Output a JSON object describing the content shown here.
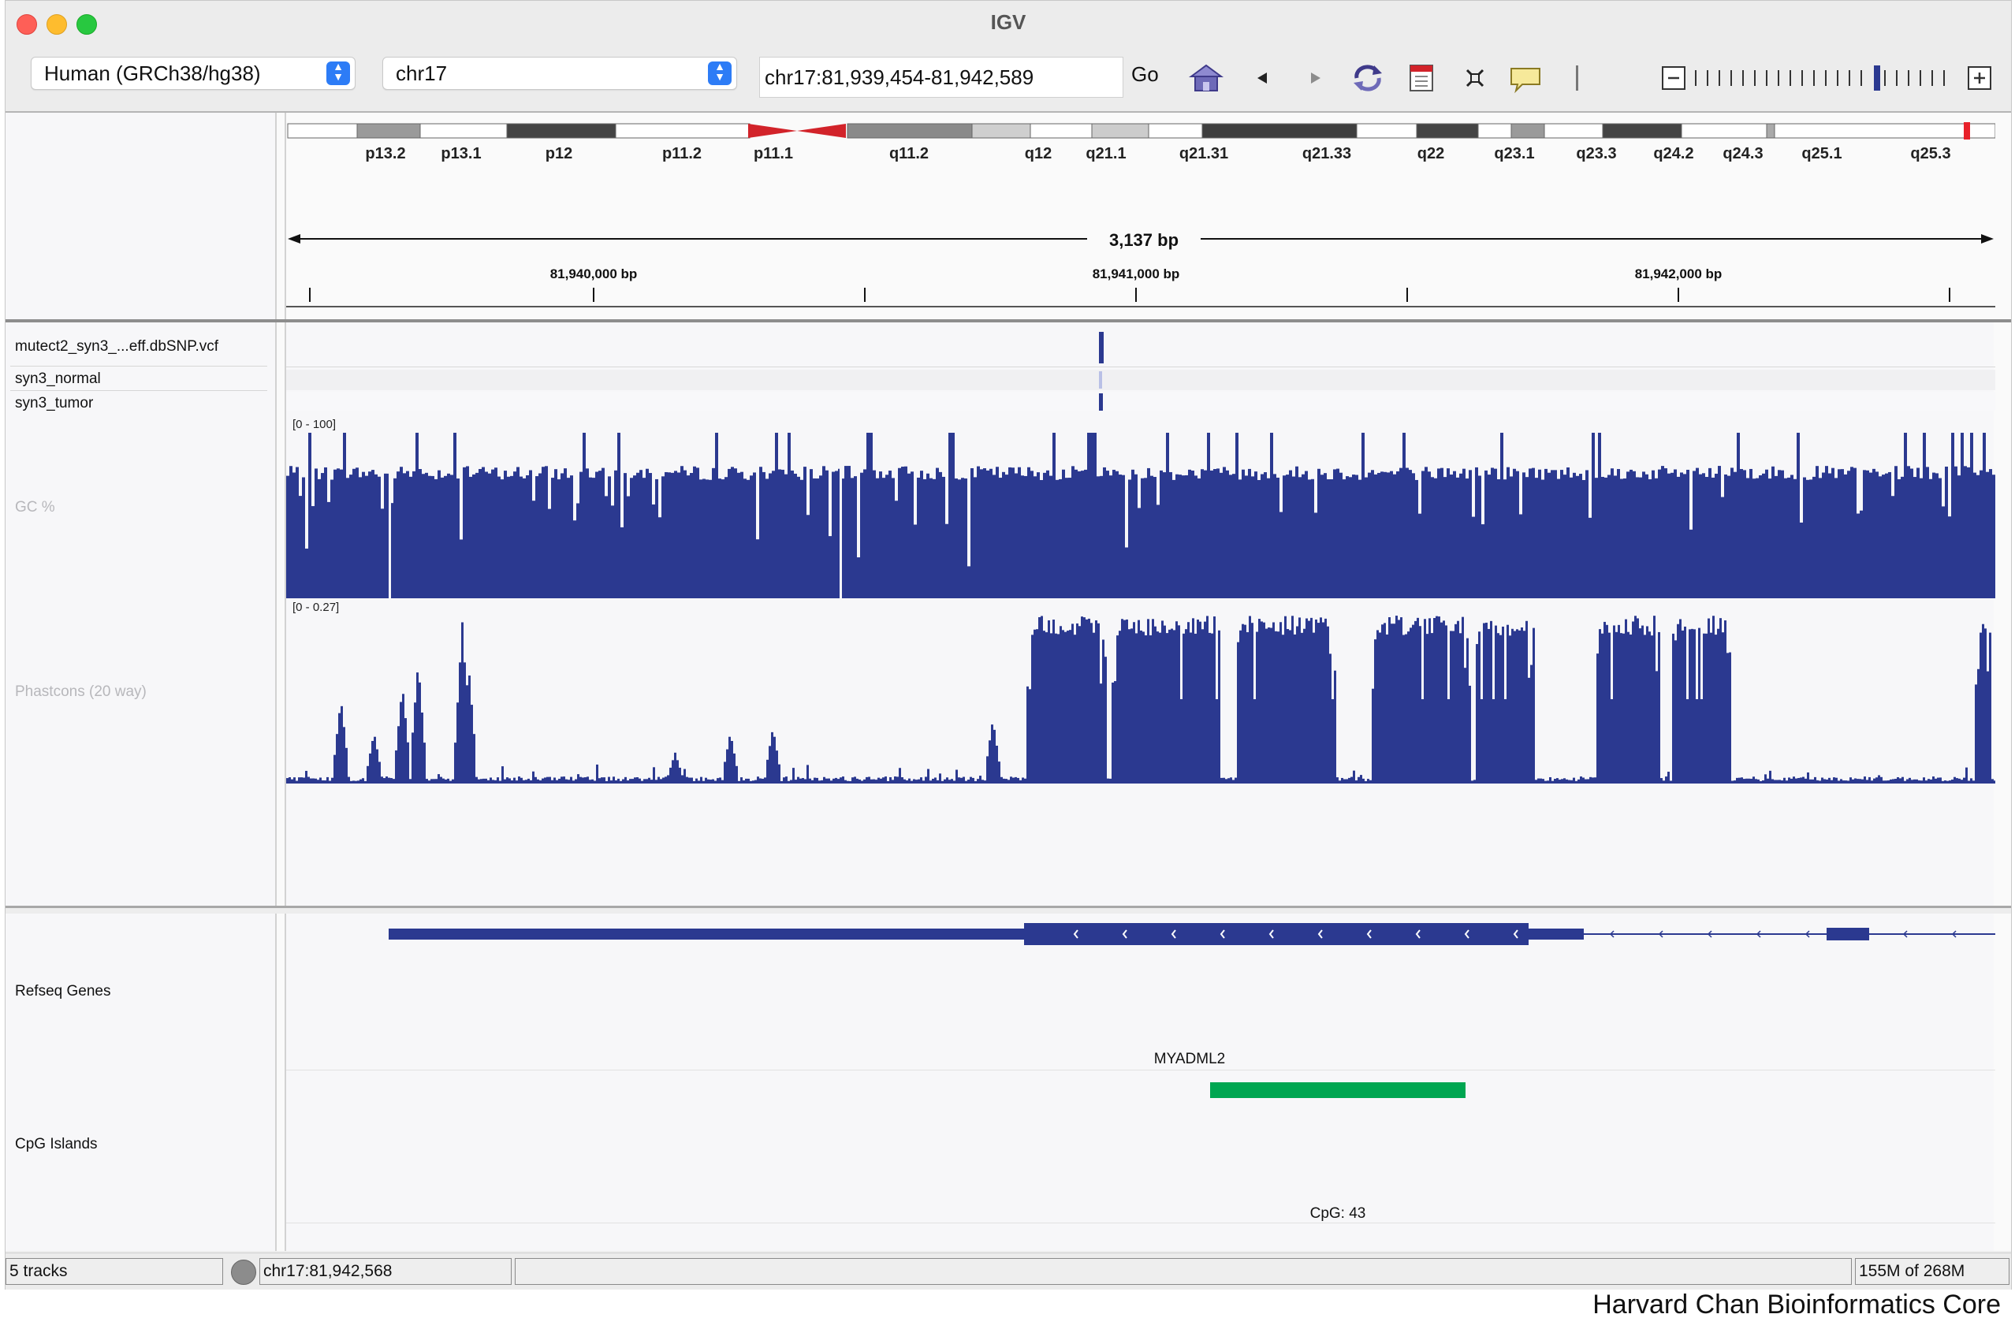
{
  "window": {
    "title": "IGV"
  },
  "toolbar": {
    "genome_select": "Human (GRCh38/hg38)",
    "chromosome_select": "chr17",
    "locus": "chr17:81,939,454-81,942,589",
    "go_label": "Go",
    "icons": [
      "home-icon",
      "back-icon",
      "forward-icon",
      "refresh-icon",
      "region-of-interest-icon",
      "fit-to-window-icon",
      "popup-info-icon",
      "zoom-out-icon",
      "zoom-in-icon"
    ]
  },
  "ideogram": {
    "bands": [
      "p13.2",
      "p13.1",
      "p12",
      "p11.2",
      "p11.1",
      "q11.2",
      "q12",
      "q21.1",
      "q21.31",
      "q21.33",
      "q22",
      "q23.1",
      "q23.3",
      "q24.2",
      "q24.3",
      "q25.1",
      "q25.3"
    ]
  },
  "ruler": {
    "span_label": "3,137 bp",
    "tick_labels": [
      "81,940,000 bp",
      "81,941,000 bp",
      "81,942,000 bp"
    ]
  },
  "tracks": {
    "vcf": "mutect2_syn3_...eff.dbSNP.vcf",
    "sample_normal": "syn3_normal",
    "sample_tumor": "syn3_tumor",
    "gc": {
      "name": "GC %",
      "range": "[0 - 100]"
    },
    "phastcons": {
      "name": "Phastcons (20 way)",
      "range": "[0 - 0.27]"
    },
    "refseq": {
      "name": "Refseq Genes",
      "gene_label": "MYADML2"
    },
    "cpg": {
      "name": "CpG Islands",
      "feature_label": "CpG: 43"
    }
  },
  "colors": {
    "signal": "#2b3990",
    "cpg": "#00a651",
    "band_red": "#d2232a"
  },
  "status": {
    "tracks": "5 tracks",
    "position": "chr17:81,942,568",
    "memory": "155M of 268M"
  },
  "credit": "Harvard Chan Bioinformatics Core"
}
